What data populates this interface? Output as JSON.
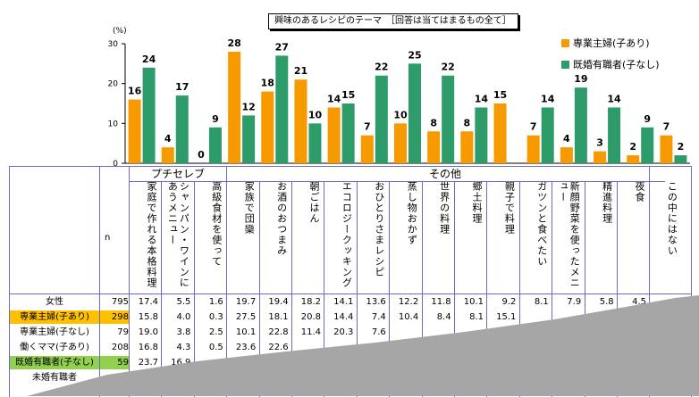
{
  "title": "興味のあるレシピのテーマ　［回答は当てはまるもの全て］",
  "unit_label": "(%)",
  "legend": [
    {
      "name": "専業主婦(子あり)",
      "color": "#f79a00"
    },
    {
      "name": "既婚有職者(子なし)",
      "color": "#2e9b6b"
    }
  ],
  "chart_data": {
    "type": "bar",
    "title": "興味のあるレシピのテーマ　［回答は当てはまるもの全て］",
    "ylabel": "(%)",
    "ylim": [
      0,
      30
    ],
    "yticks": [
      0,
      10,
      20,
      30
    ],
    "categories": [
      "家庭で作れる本格料理",
      "シャンパン・ワインにあうメニュー",
      "高級食材を使って",
      "家族で団欒",
      "お酒のおつまみ",
      "朝ごはん",
      "エコロジークッキング",
      "おひとりさまレシピ",
      "蒸し物おかず",
      "世界の料理",
      "郷土料理",
      "親子で料理",
      "ガツンと食べたい",
      "新顔野菜を使ったメニュー",
      "精進料理",
      "夜食",
      "この中にはない"
    ],
    "series": [
      {
        "name": "専業主婦(子あり)",
        "color": "#f79a00",
        "values": [
          16,
          4,
          0,
          28,
          18,
          21,
          14,
          7,
          10,
          8,
          8,
          15,
          7,
          4,
          3,
          2,
          7
        ]
      },
      {
        "name": "既婚有職者(子なし)",
        "color": "#2e9b6b",
        "values": [
          24,
          17,
          9,
          12,
          27,
          10,
          15,
          22,
          25,
          22,
          14,
          null,
          14,
          19,
          14,
          9,
          2
        ]
      }
    ],
    "grid": true,
    "legend_position": "top-right"
  },
  "table": {
    "groups": [
      "プチセレブ",
      "その他"
    ],
    "n_header": "n",
    "columns": [
      "家庭で作れる本格料理",
      "シャンパン・ワインにあうメニュー",
      "高級食材を使って",
      "家族で団欒",
      "お酒のおつまみ",
      "朝ごはん",
      "エコロジークッキング",
      "おひとりさまレシピ",
      "蒸し物おかず",
      "世界の料理",
      "郷土料理",
      "親子で料理",
      "ガツンと食べたい",
      "新顔野菜を使ったメニュー",
      "精進料理",
      "夜食",
      "この中にはない"
    ],
    "rows": [
      {
        "label": "女性",
        "n": "795",
        "values": [
          "17.4",
          "5.5",
          "1.6",
          "19.7",
          "19.4",
          "18.2",
          "14.1",
          "13.6",
          "12.2",
          "11.8",
          "10.1",
          "9.2",
          "8.1",
          "7.9",
          "5.8",
          "4.5",
          ""
        ]
      },
      {
        "label": "専業主婦(子あり)",
        "n": "298",
        "values": [
          "15.8",
          "4.0",
          "0.3",
          "27.5",
          "18.1",
          "20.8",
          "14.4",
          "7.4",
          "10.4",
          "8.4",
          "8.1",
          "15.1",
          "",
          "",
          "",
          "",
          ""
        ]
      },
      {
        "label": "専業主婦(子なし)",
        "n": "79",
        "values": [
          "19.0",
          "3.8",
          "2.5",
          "10.1",
          "22.8",
          "11.4",
          "20.3",
          "7.6",
          "",
          "",
          "",
          "",
          "",
          "",
          "",
          "",
          ""
        ]
      },
      {
        "label": "働くママ(子あり)",
        "n": "208",
        "values": [
          "16.8",
          "4.3",
          "0.5",
          "23.6",
          "22.6",
          "",
          "",
          "",
          "",
          "",
          "",
          "",
          "",
          "",
          "",
          "",
          ""
        ]
      },
      {
        "label": "既婚有職者(子なし)",
        "n": "59",
        "values": [
          "23.7",
          "16.9",
          "",
          "",
          "",
          "",
          "",
          "",
          "",
          "",
          "",
          "",
          "",
          "",
          "",
          "",
          ""
        ]
      },
      {
        "label": "未婚有職者",
        "n": "",
        "values": [
          "",
          "",
          "",
          "",
          "",
          "",
          "",
          "",
          "",
          "",
          "",
          "",
          "",
          "",
          "",
          "",
          ""
        ]
      }
    ]
  }
}
